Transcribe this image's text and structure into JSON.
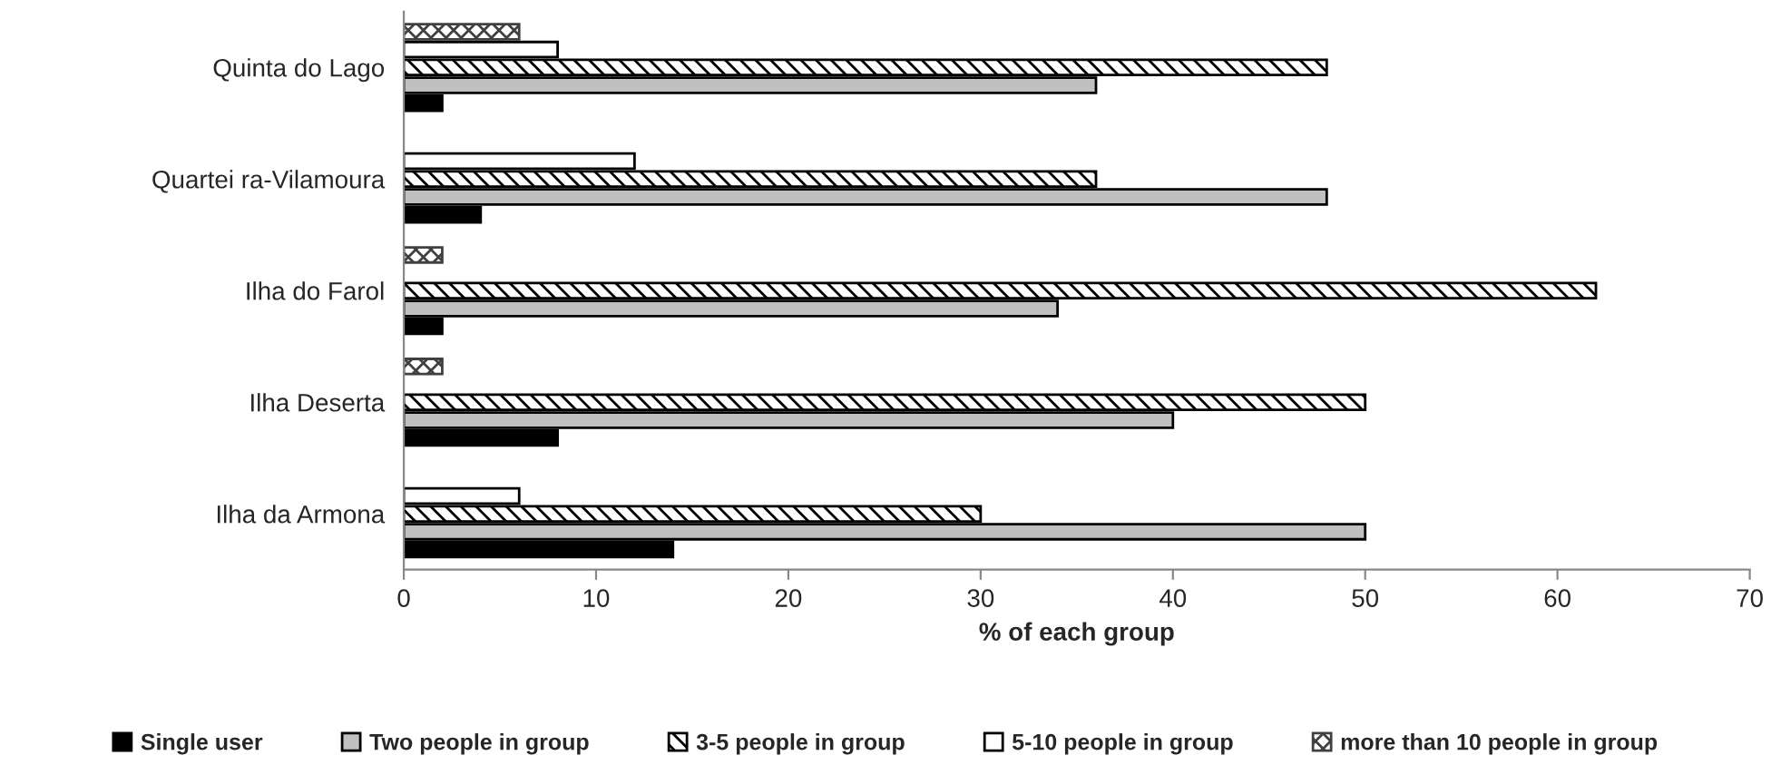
{
  "chart_data": {
    "type": "bar",
    "orientation": "horizontal",
    "xlabel": "% of each group",
    "categories": [
      "Quinta do Lago",
      "Quartei ra-Vilamoura",
      "Ilha do Farol",
      "Ilha Deserta",
      "Ilha da Armona"
    ],
    "series": [
      {
        "name": "Single user",
        "color": "#000000",
        "values": [
          2,
          4,
          2,
          8,
          14
        ]
      },
      {
        "name": "Two people in group",
        "color": "#c0c0c0",
        "values": [
          36,
          48,
          34,
          40,
          50
        ]
      },
      {
        "name": "3-5 people in group",
        "color": "#000000",
        "values": [
          48,
          36,
          62,
          50,
          30
        ]
      },
      {
        "name": "5-10 people in group",
        "color": "#ffffff",
        "values": [
          8,
          12,
          null,
          null,
          6
        ]
      },
      {
        "name": "more than 10 people in group",
        "color": "#404040",
        "values": [
          6,
          null,
          2,
          2,
          null
        ]
      }
    ],
    "xlim": [
      0,
      70
    ],
    "xticks": [
      0,
      10,
      20,
      30,
      40,
      50,
      60,
      70
    ],
    "grid": false,
    "legend": "bottom"
  }
}
